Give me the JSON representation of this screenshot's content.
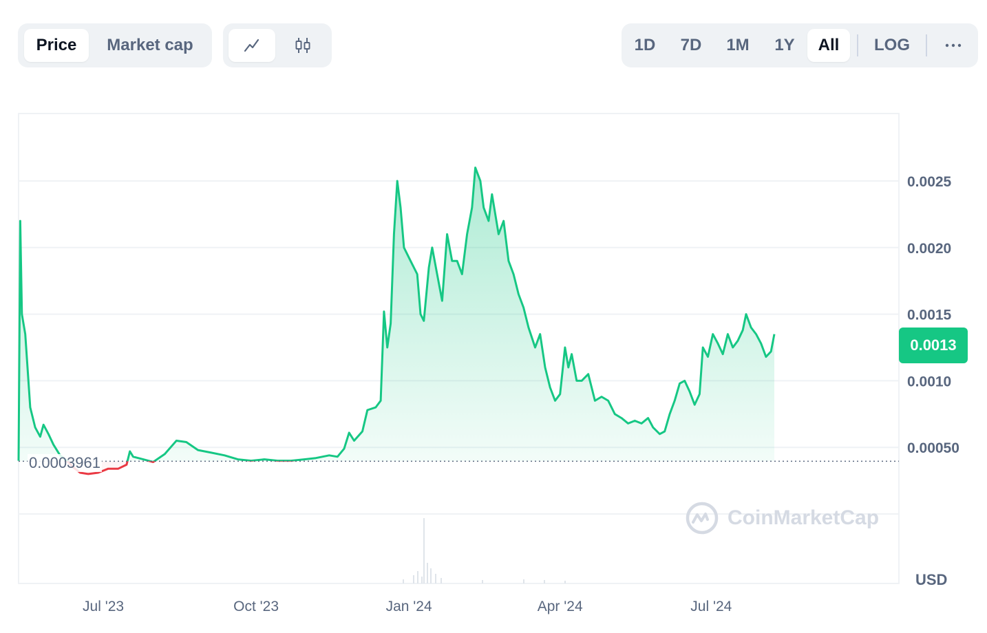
{
  "toolbar": {
    "metric_tabs": [
      {
        "label": "Price",
        "active": true
      },
      {
        "label": "Market cap",
        "active": false
      }
    ],
    "chart_type_tabs": [
      {
        "icon": "line-chart-icon",
        "active": true
      },
      {
        "icon": "candlestick-icon",
        "active": false
      }
    ],
    "range_tabs": [
      {
        "label": "1D",
        "active": false
      },
      {
        "label": "7D",
        "active": false
      },
      {
        "label": "1M",
        "active": false
      },
      {
        "label": "1Y",
        "active": false
      },
      {
        "label": "All",
        "active": true
      }
    ],
    "log_label": "LOG",
    "more_icon": "more-dots-icon"
  },
  "current_price_label": "0.0013",
  "baseline_label": "0.0003961",
  "currency_label": "USD",
  "watermark": {
    "text": "CoinMarketCap",
    "icon": "coinmarketcap-logo-icon"
  },
  "colors": {
    "up": "#16c784",
    "down": "#ea3943",
    "grid": "#eff2f5",
    "text": "#58667e"
  },
  "chart_data": {
    "type": "area",
    "title": "",
    "xlabel": "",
    "ylabel": "",
    "x_ticks": [
      "Jul '23",
      "Oct '23",
      "Jan '24",
      "Apr '24",
      "Jul '24"
    ],
    "y_ticks": [
      {
        "value": 0.0005,
        "label": "0.00050"
      },
      {
        "value": 0.001,
        "label": "0.0010"
      },
      {
        "value": 0.0015,
        "label": "0.0015"
      },
      {
        "value": 0.002,
        "label": "0.0020"
      },
      {
        "value": 0.0025,
        "label": "0.0025"
      }
    ],
    "ylim": [
      0,
      0.003
    ],
    "baseline": 0.0003961,
    "current": 0.0013,
    "x_range": [
      "2023-05-11",
      "2024-10-22"
    ],
    "series": [
      {
        "points": [
          [
            "2023-05-11",
            0.0004
          ],
          [
            "2023-05-12",
            0.0022
          ],
          [
            "2023-05-13",
            0.0015
          ],
          [
            "2023-05-15",
            0.00135
          ],
          [
            "2023-05-18",
            0.0008
          ],
          [
            "2023-05-21",
            0.00065
          ],
          [
            "2023-05-24",
            0.00058
          ],
          [
            "2023-05-26",
            0.00067
          ],
          [
            "2023-05-29",
            0.0006
          ],
          [
            "2023-06-01",
            0.00052
          ],
          [
            "2023-06-05",
            0.00044
          ],
          [
            "2023-06-09",
            0.0004
          ],
          [
            "2023-06-13",
            0.00035
          ],
          [
            "2023-06-17",
            0.00031
          ],
          [
            "2023-06-22",
            0.0003
          ],
          [
            "2023-06-28",
            0.00031
          ],
          [
            "2023-07-04",
            0.00034
          ],
          [
            "2023-07-10",
            0.00034
          ],
          [
            "2023-07-15",
            0.00037
          ],
          [
            "2023-07-17",
            0.00047
          ],
          [
            "2023-07-19",
            0.00043
          ],
          [
            "2023-07-25",
            0.00041
          ],
          [
            "2023-07-31",
            0.00039
          ],
          [
            "2023-08-07",
            0.00045
          ],
          [
            "2023-08-14",
            0.00055
          ],
          [
            "2023-08-20",
            0.00054
          ],
          [
            "2023-08-27",
            0.00048
          ],
          [
            "2023-09-04",
            0.00046
          ],
          [
            "2023-09-12",
            0.00044
          ],
          [
            "2023-09-20",
            0.00041
          ],
          [
            "2023-09-28",
            0.0004
          ],
          [
            "2023-10-06",
            0.00041
          ],
          [
            "2023-10-14",
            0.0004
          ],
          [
            "2023-10-22",
            0.0004
          ],
          [
            "2023-10-30",
            0.00041
          ],
          [
            "2023-11-06",
            0.00042
          ],
          [
            "2023-11-14",
            0.00044
          ],
          [
            "2023-11-19",
            0.00043
          ],
          [
            "2023-11-23",
            0.00049
          ],
          [
            "2023-11-26",
            0.00061
          ],
          [
            "2023-11-29",
            0.00055
          ],
          [
            "2023-12-04",
            0.00062
          ],
          [
            "2023-12-07",
            0.00078
          ],
          [
            "2023-12-12",
            0.0008
          ],
          [
            "2023-12-15",
            0.00085
          ],
          [
            "2023-12-17",
            0.00152
          ],
          [
            "2023-12-19",
            0.00125
          ],
          [
            "2023-12-21",
            0.00143
          ],
          [
            "2023-12-23",
            0.0021
          ],
          [
            "2023-12-25",
            0.0025
          ],
          [
            "2023-12-27",
            0.0023
          ],
          [
            "2023-12-29",
            0.002
          ],
          [
            "2024-01-02",
            0.0019
          ],
          [
            "2024-01-06",
            0.0018
          ],
          [
            "2024-01-08",
            0.0015
          ],
          [
            "2024-01-10",
            0.00145
          ],
          [
            "2024-01-13",
            0.00185
          ],
          [
            "2024-01-15",
            0.002
          ],
          [
            "2024-01-18",
            0.0018
          ],
          [
            "2024-01-21",
            0.0016
          ],
          [
            "2024-01-24",
            0.0021
          ],
          [
            "2024-01-27",
            0.0019
          ],
          [
            "2024-01-30",
            0.0019
          ],
          [
            "2024-02-02",
            0.0018
          ],
          [
            "2024-02-05",
            0.0021
          ],
          [
            "2024-02-08",
            0.0023
          ],
          [
            "2024-02-10",
            0.0026
          ],
          [
            "2024-02-13",
            0.0025
          ],
          [
            "2024-02-15",
            0.0023
          ],
          [
            "2024-02-18",
            0.0022
          ],
          [
            "2024-02-20",
            0.0024
          ],
          [
            "2024-02-24",
            0.0021
          ],
          [
            "2024-02-27",
            0.0022
          ],
          [
            "2024-03-01",
            0.0019
          ],
          [
            "2024-03-04",
            0.0018
          ],
          [
            "2024-03-07",
            0.00165
          ],
          [
            "2024-03-10",
            0.00155
          ],
          [
            "2024-03-13",
            0.0014
          ],
          [
            "2024-03-17",
            0.00125
          ],
          [
            "2024-03-20",
            0.00135
          ],
          [
            "2024-03-23",
            0.0011
          ],
          [
            "2024-03-26",
            0.00095
          ],
          [
            "2024-03-29",
            0.00085
          ],
          [
            "2024-04-01",
            0.0009
          ],
          [
            "2024-04-04",
            0.00125
          ],
          [
            "2024-04-06",
            0.0011
          ],
          [
            "2024-04-08",
            0.0012
          ],
          [
            "2024-04-11",
            0.001
          ],
          [
            "2024-04-14",
            0.001
          ],
          [
            "2024-04-18",
            0.00105
          ],
          [
            "2024-04-22",
            0.00085
          ],
          [
            "2024-04-26",
            0.00088
          ],
          [
            "2024-04-30",
            0.00085
          ],
          [
            "2024-05-04",
            0.00075
          ],
          [
            "2024-05-08",
            0.00072
          ],
          [
            "2024-05-12",
            0.00068
          ],
          [
            "2024-05-16",
            0.0007
          ],
          [
            "2024-05-20",
            0.00068
          ],
          [
            "2024-05-24",
            0.00072
          ],
          [
            "2024-05-27",
            0.00065
          ],
          [
            "2024-05-31",
            0.0006
          ],
          [
            "2024-06-03",
            0.00062
          ],
          [
            "2024-06-06",
            0.00075
          ],
          [
            "2024-06-09",
            0.00085
          ],
          [
            "2024-06-12",
            0.00098
          ],
          [
            "2024-06-15",
            0.001
          ],
          [
            "2024-06-18",
            0.00092
          ],
          [
            "2024-06-21",
            0.00082
          ],
          [
            "2024-06-24",
            0.0009
          ],
          [
            "2024-06-26",
            0.00125
          ],
          [
            "2024-06-29",
            0.00118
          ],
          [
            "2024-07-02",
            0.00135
          ],
          [
            "2024-07-05",
            0.00128
          ],
          [
            "2024-07-08",
            0.0012
          ],
          [
            "2024-07-11",
            0.00135
          ],
          [
            "2024-07-14",
            0.00125
          ],
          [
            "2024-07-17",
            0.0013
          ],
          [
            "2024-07-20",
            0.00138
          ],
          [
            "2024-07-22",
            0.0015
          ],
          [
            "2024-07-25",
            0.0014
          ],
          [
            "2024-07-28",
            0.00135
          ],
          [
            "2024-07-31",
            0.00128
          ],
          [
            "2024-08-03",
            0.00118
          ],
          [
            "2024-08-06",
            0.00122
          ],
          [
            "2024-08-08",
            0.00135
          ]
        ]
      }
    ]
  }
}
